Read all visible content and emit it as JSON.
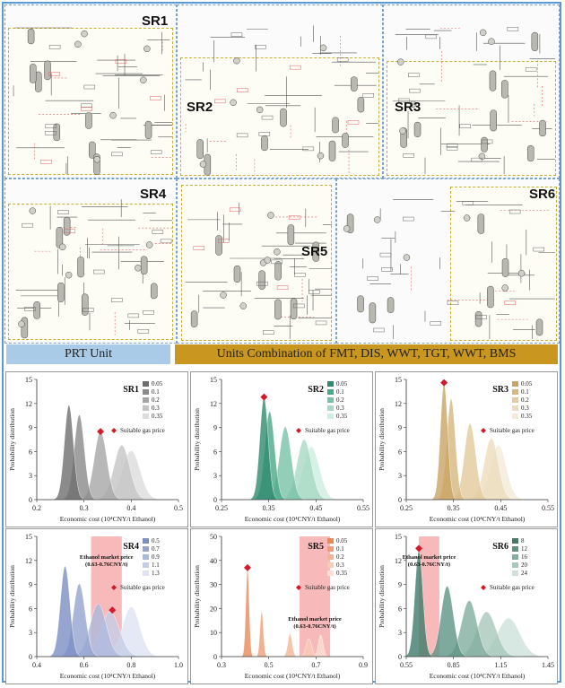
{
  "process_panels": [
    {
      "label": "SR1"
    },
    {
      "label": "SR2"
    },
    {
      "label": "SR3"
    },
    {
      "label": "SR4"
    },
    {
      "label": "SR5"
    },
    {
      "label": "SR6"
    }
  ],
  "banners": {
    "prt": "PRT Unit",
    "combo": "Units Combination of FMT, DIS, WWT, TGT, WWT, BMS"
  },
  "colors": {
    "prt_banner": "#a9cbe8",
    "combo_banner": "#c9961f",
    "marker": "#d4192b",
    "band": "#f08080"
  },
  "chart_data": [
    {
      "type": "area",
      "title": "SR1",
      "xlabel": "Economic cost  (10⁴CNY/t Ethanol)",
      "ylabel": "Probability distribution",
      "xlim": [
        0.2,
        0.5
      ],
      "ylim": [
        0,
        15
      ],
      "xticks": [
        "0.2",
        "0.3",
        "0.4",
        "0.5"
      ],
      "yticks": [
        "0",
        "3",
        "6",
        "9",
        "12",
        "15"
      ],
      "series": [
        {
          "name": "0.05",
          "mean": 0.268,
          "peak": 11.8,
          "color": "#6e6e6e"
        },
        {
          "name": "0.1",
          "mean": 0.29,
          "peak": 10.6,
          "color": "#8a8a8a"
        },
        {
          "name": "0.2",
          "mean": 0.335,
          "peak": 8.5,
          "color": "#a6a6a6"
        },
        {
          "name": "0.3",
          "mean": 0.38,
          "peak": 6.8,
          "color": "#c4c4c4"
        },
        {
          "name": "0.35",
          "mean": 0.4,
          "peak": 6.1,
          "color": "#dcdcdc"
        }
      ],
      "marker": {
        "label": "Suitable gas price",
        "x": 0.335,
        "y": 8.5
      },
      "band": null
    },
    {
      "type": "area",
      "title": "SR2",
      "xlabel": "Economic cost  (10⁴CNY/t Ethanol)",
      "ylabel": "Probability distribution",
      "xlim": [
        0.25,
        0.55
      ],
      "ylim": [
        0,
        15
      ],
      "xticks": [
        "0.25",
        "0.35",
        "0.45",
        "0.55"
      ],
      "yticks": [
        "0",
        "3",
        "6",
        "9",
        "12",
        "15"
      ],
      "series": [
        {
          "name": "0.05",
          "mean": 0.34,
          "peak": 12.8,
          "color": "#2e8b6e"
        },
        {
          "name": "0.1",
          "mean": 0.352,
          "peak": 11.0,
          "color": "#4aa888"
        },
        {
          "name": "0.2",
          "mean": 0.385,
          "peak": 9.1,
          "color": "#78c2a6"
        },
        {
          "name": "0.3",
          "mean": 0.425,
          "peak": 7.5,
          "color": "#a6dac4"
        },
        {
          "name": "0.35",
          "mean": 0.44,
          "peak": 6.6,
          "color": "#cdeee0"
        }
      ],
      "marker": {
        "label": "Suitable gas price",
        "x": 0.34,
        "y": 12.8
      },
      "band": null
    },
    {
      "type": "area",
      "title": "SR3",
      "xlabel": "Economic cost  (10⁴CNY/t Ethanol)",
      "ylabel": "Probability distribution",
      "xlim": [
        0.25,
        0.55
      ],
      "ylim": [
        0,
        15
      ],
      "xticks": [
        "0.25",
        "0.35",
        "0.45",
        "0.55"
      ],
      "yticks": [
        "0",
        "3",
        "6",
        "9",
        "12",
        "15"
      ],
      "series": [
        {
          "name": "0.05",
          "mean": 0.33,
          "peak": 14.6,
          "color": "#c9a463"
        },
        {
          "name": "0.1",
          "mean": 0.345,
          "peak": 12.6,
          "color": "#d6b77e"
        },
        {
          "name": "0.2",
          "mean": 0.385,
          "peak": 9.5,
          "color": "#e2cb9c"
        },
        {
          "name": "0.3",
          "mean": 0.43,
          "peak": 7.7,
          "color": "#ecdcbb"
        },
        {
          "name": "0.35",
          "mean": 0.445,
          "peak": 6.8,
          "color": "#f4ead6"
        }
      ],
      "marker": {
        "label": "Suitable gas price",
        "x": 0.33,
        "y": 14.6
      },
      "band": null
    },
    {
      "type": "area",
      "title": "SR4",
      "xlabel": "Economic cost  (10⁴CNY/t Ethanol)",
      "ylabel": "Probability distribution",
      "xlim": [
        0.4,
        1.0
      ],
      "ylim": [
        0,
        15
      ],
      "xticks": [
        "0.4",
        "0.6",
        "0.8",
        "1.0"
      ],
      "yticks": [
        "0",
        "3",
        "6",
        "9",
        "12",
        "15"
      ],
      "series": [
        {
          "name": "0.5",
          "mean": 0.52,
          "peak": 11.3,
          "color": "#7b8ec4"
        },
        {
          "name": "0.7",
          "mean": 0.58,
          "peak": 9.1,
          "color": "#94a4d0"
        },
        {
          "name": "0.9",
          "mean": 0.66,
          "peak": 6.6,
          "color": "#adb9dc"
        },
        {
          "name": "1.1",
          "mean": 0.71,
          "peak": 5.6,
          "color": "#c5cee7"
        },
        {
          "name": "1.3",
          "mean": 0.8,
          "peak": 6.2,
          "color": "#dde3f2"
        }
      ],
      "marker": {
        "label": "Suitable gas price",
        "x": 0.72,
        "y": 5.8
      },
      "band": {
        "x0": 0.63,
        "x1": 0.76,
        "label_line1": "Ethanol market price",
        "label_line2": "(0.63-0.76CNY/t)"
      }
    },
    {
      "type": "area",
      "title": "SR5",
      "xlabel": "Economic cost  (10⁴CNY/t Ethanol)",
      "ylabel": "Probability distribution",
      "xlim": [
        0.3,
        0.9
      ],
      "ylim": [
        0,
        50
      ],
      "xticks": [
        "0.3",
        "0.5",
        "0.7",
        "0.9"
      ],
      "yticks": [
        "0",
        "10",
        "20",
        "30",
        "40",
        "50"
      ],
      "series": [
        {
          "name": "0.05",
          "mean": 0.41,
          "peak": 37,
          "color": "#e8895a"
        },
        {
          "name": "0.1",
          "mean": 0.47,
          "peak": 19,
          "color": "#ee9f76"
        },
        {
          "name": "0.2",
          "mean": 0.59,
          "peak": 9.5,
          "color": "#f3b595"
        },
        {
          "name": "0.3",
          "mean": 0.67,
          "peak": 7.5,
          "color": "#f7cbb4"
        },
        {
          "name": "0.35",
          "mean": 0.72,
          "peak": 9.0,
          "color": "#fbe0d3"
        }
      ],
      "marker": {
        "label": "Suitable gas price",
        "x": 0.41,
        "y": 37
      },
      "band": {
        "x0": 0.63,
        "x1": 0.76,
        "label_line1": "Ethanol market price",
        "label_line2": "(0.63-0.76CNY/t)"
      }
    },
    {
      "type": "area",
      "title": "SR6",
      "xlabel": "Economic cost  (10⁴CNY/t Ethanol)",
      "ylabel": "Probability distribution",
      "xlim": [
        0.55,
        1.45
      ],
      "ylim": [
        0,
        15
      ],
      "xticks": [
        "0.55",
        "0.85",
        "1.15",
        "1.45"
      ],
      "yticks": [
        "0",
        "3",
        "6",
        "9",
        "12",
        "15"
      ],
      "series": [
        {
          "name": "8",
          "mean": 0.63,
          "peak": 13.2,
          "color": "#3f7a6a"
        },
        {
          "name": "12",
          "mean": 0.81,
          "peak": 8.8,
          "color": "#5e9484"
        },
        {
          "name": "16",
          "mean": 0.95,
          "peak": 7.0,
          "color": "#82ae9f"
        },
        {
          "name": "20",
          "mean": 1.06,
          "peak": 5.6,
          "color": "#a7c8bc"
        },
        {
          "name": "24",
          "mean": 1.2,
          "peak": 4.8,
          "color": "#cde1d9"
        }
      ],
      "marker": {
        "label": "Suitable gas price",
        "x": 0.63,
        "y": 13.5
      },
      "band": {
        "x0": 0.63,
        "x1": 0.76,
        "label_line1": "Ethanol market price",
        "label_line2": "(0.63-0.76CNY/t)"
      }
    }
  ]
}
